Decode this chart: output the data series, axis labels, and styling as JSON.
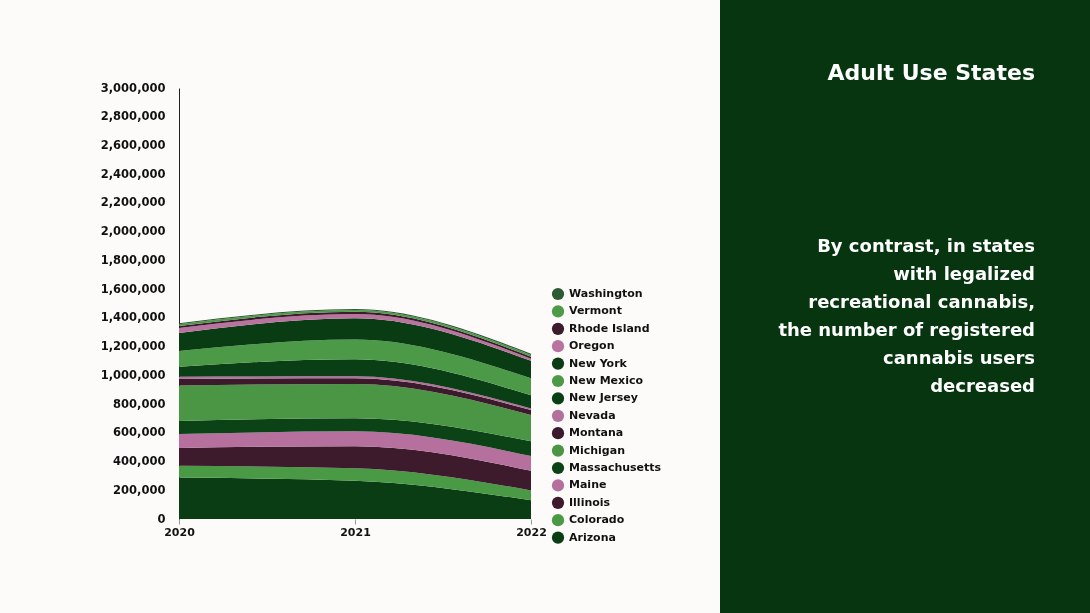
{
  "chart_data": {
    "type": "area",
    "stacked": true,
    "title": "Adult Use States",
    "subtitle": "By contrast, in states with legalized recreational cannabis, the number of registered cannabis users decreased",
    "x": [
      2020,
      2021,
      2022
    ],
    "xlim": [
      2020,
      2022
    ],
    "xticks": [
      2020,
      2021,
      2022
    ],
    "ylim": [
      0,
      3000000
    ],
    "yticks": [
      0,
      {
        "value": 200000,
        "label": "200,000"
      },
      {
        "value": 400000,
        "label": "400,000"
      },
      {
        "value": 600000,
        "label": "600,000"
      },
      {
        "value": 800000,
        "label": "800,000"
      },
      {
        "value": 1000000,
        "label": "1,000,000"
      },
      {
        "value": 1200000,
        "label": "1,200,000"
      },
      {
        "value": 1400000,
        "label": "1,400,000"
      },
      {
        "value": 1600000,
        "label": "1,600,000"
      },
      {
        "value": 1800000,
        "label": "1,800,000"
      },
      {
        "value": 2000000,
        "label": "2,000,000"
      },
      {
        "value": 2200000,
        "label": "2,200,000"
      },
      {
        "value": 2400000,
        "label": "2,400,000"
      },
      {
        "value": 2600000,
        "label": "2,600,000"
      },
      {
        "value": 2800000,
        "label": "2,800,000"
      },
      {
        "value": 3000000,
        "label": "3,000,000"
      }
    ],
    "grid": false,
    "legend": "right",
    "series": [
      {
        "name": "Arizona",
        "color": "#0a3d14",
        "values": [
          288000,
          267000,
          130000
        ]
      },
      {
        "name": "Colorado",
        "color": "#4a9a45",
        "values": [
          82000,
          87000,
          69000
        ]
      },
      {
        "name": "Illinois",
        "color": "#3d1a2c",
        "values": [
          125000,
          153000,
          137000
        ]
      },
      {
        "name": "Maine",
        "color": "#b5709e",
        "values": [
          96000,
          103000,
          102000
        ]
      },
      {
        "name": "Massachusetts",
        "color": "#0b4216",
        "values": [
          92000,
          91000,
          103000
        ]
      },
      {
        "name": "Michigan",
        "color": "#4b9645",
        "values": [
          246000,
          239000,
          183000
        ]
      },
      {
        "name": "Montana",
        "color": "#3a1a2b",
        "values": [
          46000,
          39000,
          34000
        ]
      },
      {
        "name": "Nevada",
        "color": "#b2719c",
        "values": [
          16000,
          14000,
          11000
        ]
      },
      {
        "name": "New Jersey",
        "color": "#0a3e15",
        "values": [
          69000,
          119000,
          92000
        ]
      },
      {
        "name": "New Mexico",
        "color": "#4c9a47",
        "values": [
          109000,
          137000,
          118000
        ]
      },
      {
        "name": "New York",
        "color": "#093c13",
        "values": [
          125000,
          148000,
          122000
        ]
      },
      {
        "name": "Oregon",
        "color": "#b8739f",
        "values": [
          35000,
          30000,
          15000
        ]
      },
      {
        "name": "Rhode Island",
        "color": "#3c1b2d",
        "values": [
          15000,
          16000,
          14000
        ]
      },
      {
        "name": "Vermont",
        "color": "#4d9b48",
        "values": [
          12000,
          11000,
          12000
        ]
      },
      {
        "name": "Washington",
        "color": "#2c5a32",
        "values": [
          7000,
          7000,
          9000
        ]
      }
    ]
  }
}
